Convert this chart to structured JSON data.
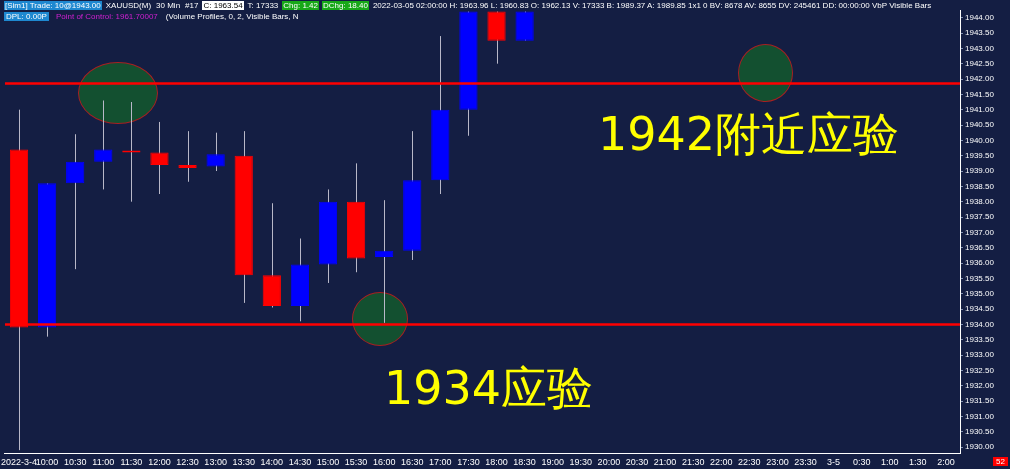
{
  "chart_data": {
    "type": "candlestick",
    "categories": [
      "2022-3-4",
      "10:00",
      "10:30",
      "11:00",
      "11:30",
      "12:00",
      "12:30",
      "13:00",
      "13:30",
      "14:00",
      "14:30",
      "15:00",
      "15:30",
      "16:00",
      "16:30",
      "17:00",
      "17:30",
      "18:00",
      "18:30",
      "19:00",
      "19:30",
      "20:00",
      "20:30",
      "21:00",
      "21:30",
      "22:00",
      "22:30",
      "23:00",
      "23:30",
      "3-5",
      "0:30",
      "1:00",
      "1:30",
      "2:00"
    ],
    "ohlc": [
      [
        1939.7,
        1941.0,
        1929.9,
        1933.9
      ],
      [
        1933.9,
        1938.6,
        1933.6,
        1938.6
      ],
      [
        1938.6,
        1940.2,
        1935.8,
        1939.3
      ],
      [
        1939.3,
        1941.3,
        1938.4,
        1939.7
      ],
      [
        1939.65,
        1941.25,
        1938.0,
        1939.6
      ],
      [
        1939.6,
        1940.6,
        1938.25,
        1939.2
      ],
      [
        1939.2,
        1940.3,
        1938.65,
        1939.1
      ],
      [
        1939.15,
        1940.25,
        1939.0,
        1939.55
      ],
      [
        1939.5,
        1940.3,
        1934.7,
        1935.6
      ],
      [
        1935.6,
        1937.95,
        1934.55,
        1934.6
      ],
      [
        1934.6,
        1936.8,
        1934.1,
        1935.95
      ],
      [
        1935.95,
        1938.4,
        1935.35,
        1938.0
      ],
      [
        1938.0,
        1939.25,
        1935.7,
        1936.15
      ],
      [
        1936.2,
        1938.05,
        1934.05,
        1936.4
      ],
      [
        1936.4,
        1940.3,
        1936.1,
        1938.7
      ],
      [
        1938.7,
        1943.4,
        1938.25,
        1941.0
      ],
      [
        1941.0,
        1944.2,
        1940.15,
        1944.2
      ],
      [
        1944.2,
        1944.2,
        1942.5,
        1943.25
      ],
      [
        1943.25,
        1944.2,
        1943.25,
        1944.2
      ],
      null,
      null,
      null,
      null,
      null,
      null,
      null,
      null,
      null,
      null,
      null,
      null,
      null,
      null,
      null
    ],
    "colors": [
      "#ff0000",
      "#0000ff",
      "#0000ff",
      "#0000ff",
      "#ff0000",
      "#ff0000",
      "#ff0000",
      "#0000ff",
      "#ff0000",
      "#ff0000",
      "#0000ff",
      "#0000ff",
      "#ff0000",
      "#0000ff",
      "#0000ff",
      "#0000ff",
      "#0000ff",
      "#ff0000",
      "#0000ff",
      null,
      null,
      null,
      null,
      null,
      null,
      null,
      null,
      null,
      null,
      null,
      null,
      null,
      null,
      null
    ],
    "ylim": [
      1929.8,
      1944.25
    ],
    "yticks": [
      {
        "value": 1930,
        "label": "1930.00"
      },
      {
        "value": 1930.5,
        "label": "1930.50"
      },
      {
        "value": 1931,
        "label": "1931.00"
      },
      {
        "value": 1931.5,
        "label": "1931.50"
      },
      {
        "value": 1932,
        "label": "1932.00"
      },
      {
        "value": 1932.5,
        "label": "1932.50"
      },
      {
        "value": 1933,
        "label": "1933.00"
      },
      {
        "value": 1933.5,
        "label": "1933.50"
      },
      {
        "value": 1934,
        "label": "1934.00"
      },
      {
        "value": 1934.5,
        "label": "1934.50"
      },
      {
        "value": 1935,
        "label": "1935.00"
      },
      {
        "value": 1935.5,
        "label": "1935.50"
      },
      {
        "value": 1936,
        "label": "1936.00"
      },
      {
        "value": 1936.5,
        "label": "1936.50"
      },
      {
        "value": 1937,
        "label": "1937.00"
      },
      {
        "value": 1937.5,
        "label": "1937.50"
      },
      {
        "value": 1938,
        "label": "1938.00"
      },
      {
        "value": 1938.5,
        "label": "1938.50"
      },
      {
        "value": 1939,
        "label": "1939.00"
      },
      {
        "value": 1939.5,
        "label": "1939.50"
      },
      {
        "value": 1940,
        "label": "1940.00"
      },
      {
        "value": 1940.5,
        "label": "1940.50"
      },
      {
        "value": 1941,
        "label": "1941.00"
      },
      {
        "value": 1941.5,
        "label": "1941.50"
      },
      {
        "value": 1942,
        "label": "1942.00"
      },
      {
        "value": 1942.5,
        "label": "1942.50"
      },
      {
        "value": 1943,
        "label": "1943.00"
      },
      {
        "value": 1943.5,
        "label": "1943.50"
      },
      {
        "value": 1944,
        "label": "1944.00"
      }
    ],
    "ref_lines": [
      {
        "axis": "y",
        "value": 1941.85,
        "color": "#ff0000"
      },
      {
        "axis": "y",
        "value": 1934.0,
        "color": "#ff0000"
      }
    ],
    "grid": false,
    "legend": false,
    "annotations": [
      "[Sim1]  Trade: 10@1943.00",
      "XAUUSD(M)",
      "30 Min",
      "#17",
      "C: 1963.54",
      "T: 17333",
      "Chg: 1.42",
      "DChg: 18.40",
      "2022-03-05 02:00:00 H: 1963.96 L: 1960.83 O: 1962.13 V: 17333 B: 1989.37 A: 1989.85 1x1 0 BV: 8678 AV: 8655 DV: 245461 DD: 00:00:00 VbP Visible Bars",
      "Point of Control: 1961.70007",
      "(Volume Profiles, 0, 2, Visible Bars, N",
      "DPL: 0.00P",
      "52",
      "1942附近应验",
      "1934应验"
    ]
  }
}
